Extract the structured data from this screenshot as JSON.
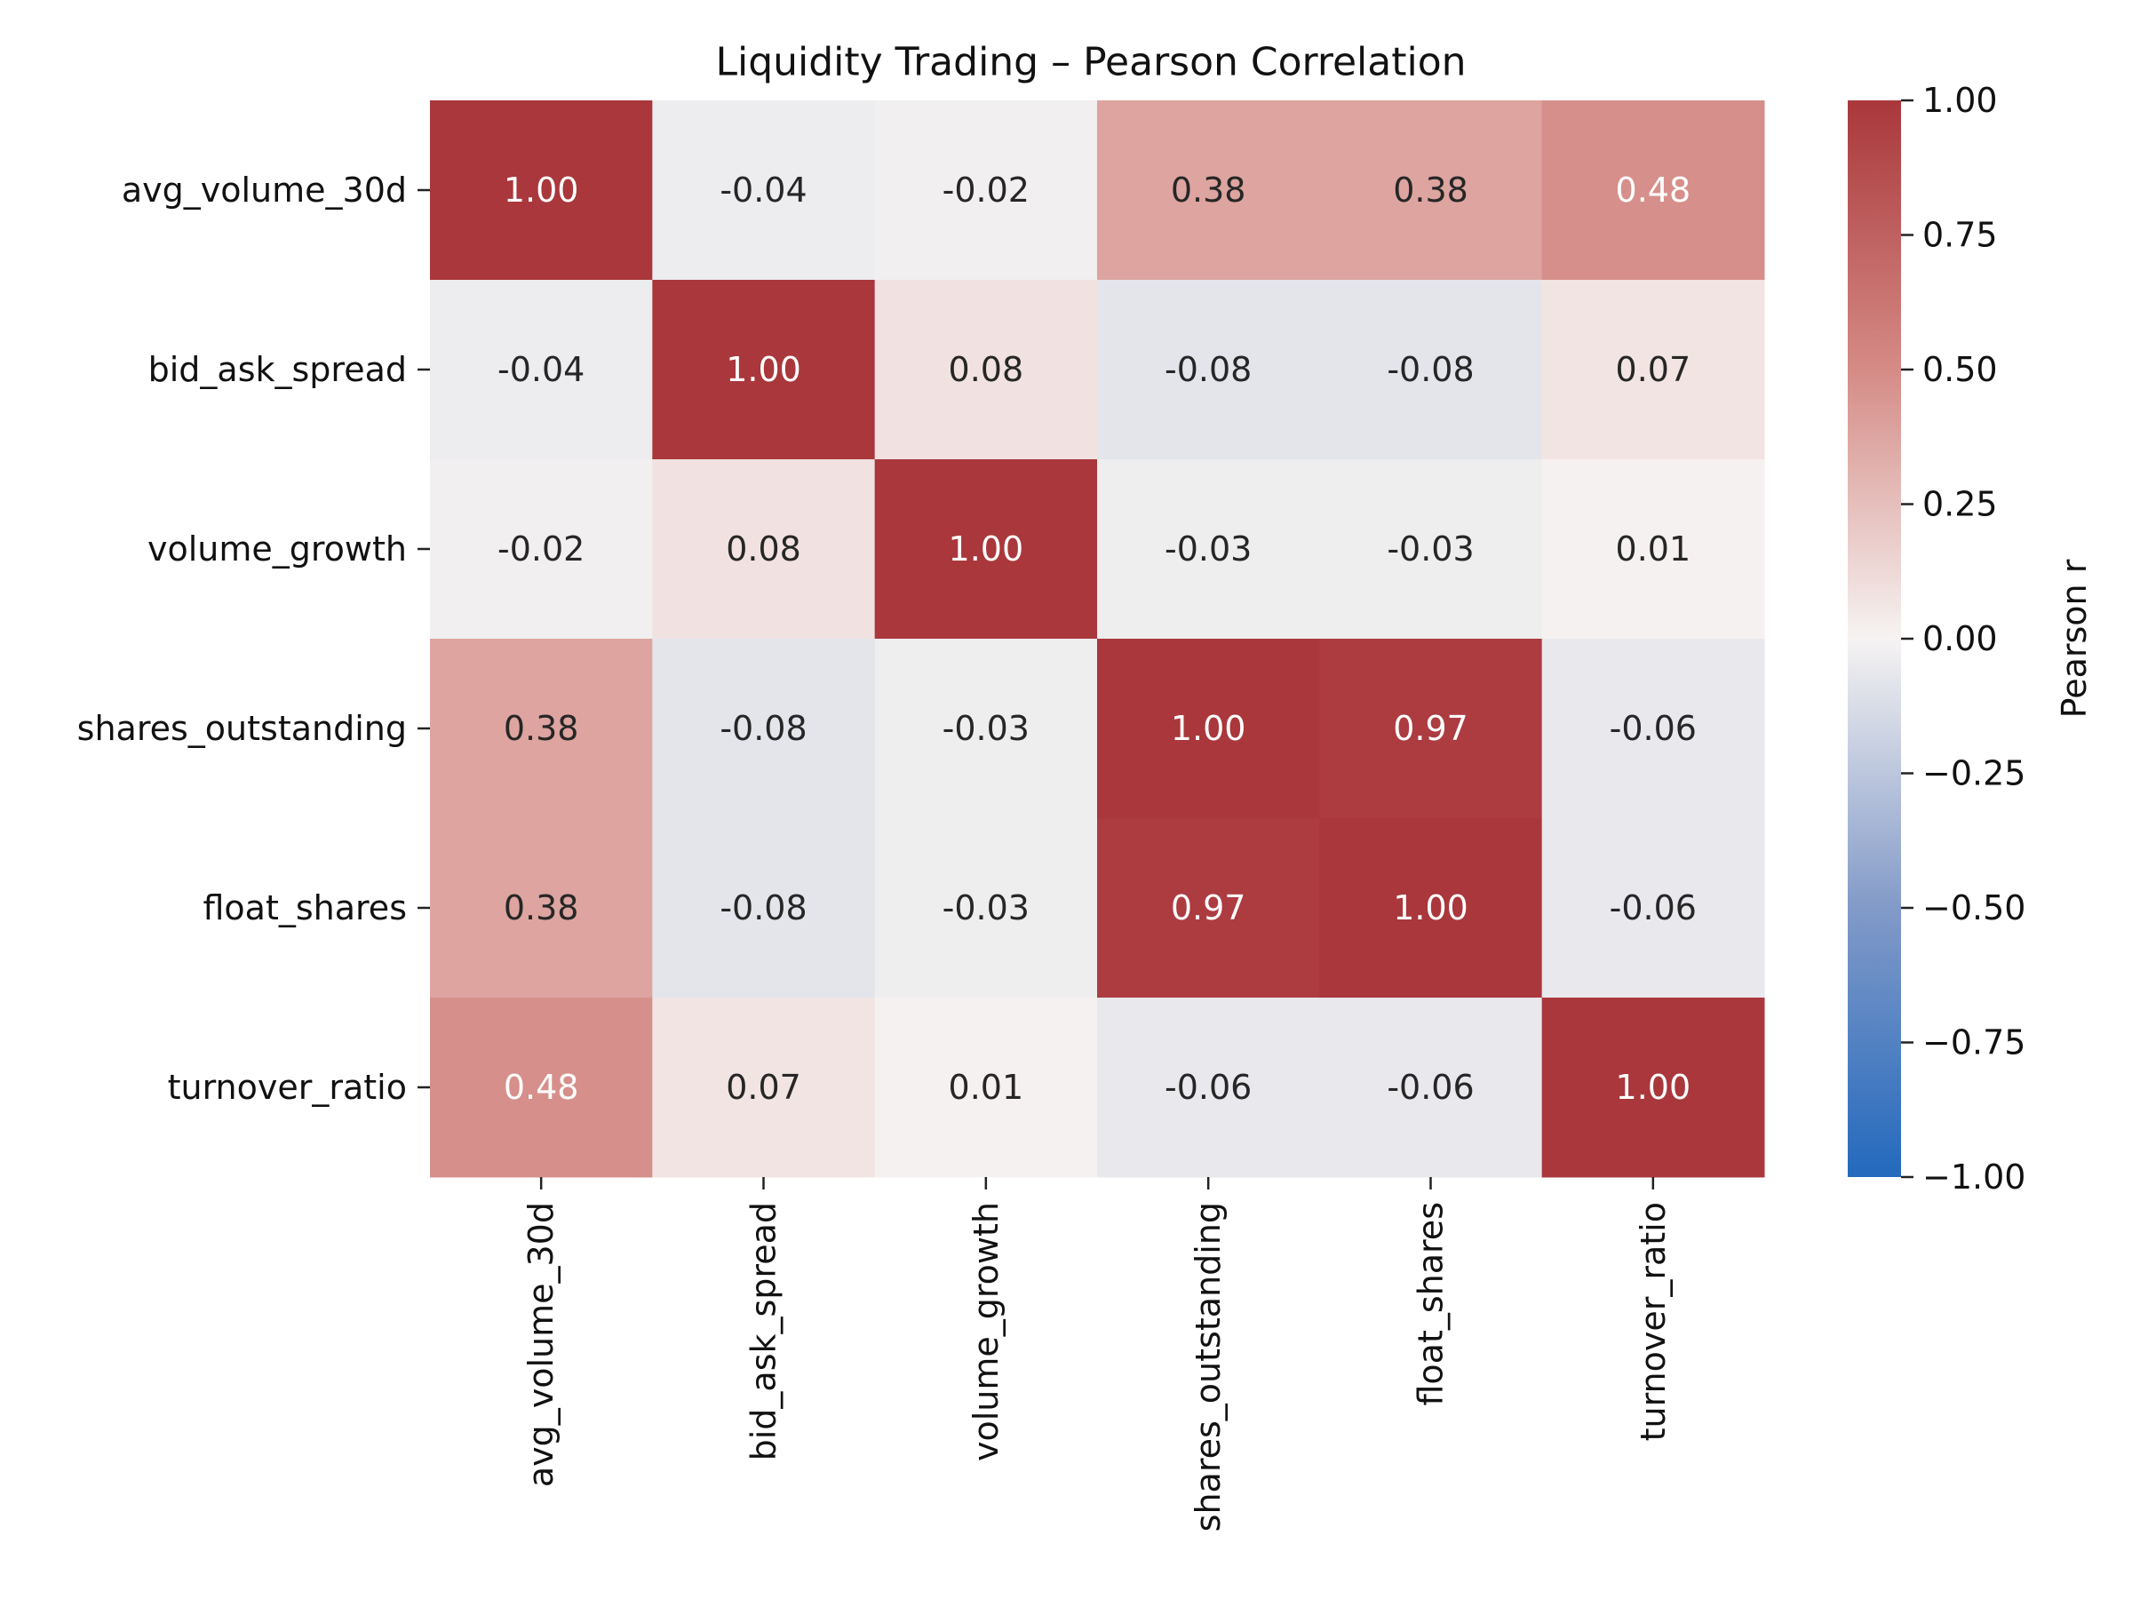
{
  "chart_data": {
    "type": "heatmap",
    "title": "Liquidity Trading – Pearson Correlation",
    "rows": [
      "avg_volume_30d",
      "bid_ask_spread",
      "volume_growth",
      "shares_outstanding",
      "float_shares",
      "turnover_ratio"
    ],
    "columns": [
      "avg_volume_30d",
      "bid_ask_spread",
      "volume_growth",
      "shares_outstanding",
      "float_shares",
      "turnover_ratio"
    ],
    "values": [
      [
        1.0,
        -0.04,
        -0.02,
        0.38,
        0.38,
        0.48
      ],
      [
        -0.04,
        1.0,
        0.08,
        -0.08,
        -0.08,
        0.07
      ],
      [
        -0.02,
        0.08,
        1.0,
        -0.03,
        -0.03,
        0.01
      ],
      [
        0.38,
        -0.08,
        -0.03,
        1.0,
        0.97,
        -0.06
      ],
      [
        0.38,
        -0.08,
        -0.03,
        0.97,
        1.0,
        -0.06
      ],
      [
        0.48,
        0.07,
        0.01,
        -0.06,
        -0.06,
        1.0
      ]
    ],
    "colorbar": {
      "label": "Pearson r",
      "min": -1.0,
      "max": 1.0,
      "ticks": [
        "1.00",
        "0.75",
        "0.50",
        "0.25",
        "0.00",
        "−0.25",
        "−0.50",
        "−0.75",
        "−1.00"
      ],
      "tick_values": [
        1.0,
        0.75,
        0.5,
        0.25,
        0.0,
        -0.25,
        -0.5,
        -0.75,
        -1.0
      ]
    },
    "colormap": {
      "name": "vlag",
      "stops": [
        {
          "value": -1.0,
          "color": "#2369bd"
        },
        {
          "value": -0.5,
          "color": "#829ac8"
        },
        {
          "value": 0.0,
          "color": "#f6f3f2"
        },
        {
          "value": 0.5,
          "color": "#d58b86"
        },
        {
          "value": 1.0,
          "color": "#a9373b"
        }
      ]
    }
  }
}
